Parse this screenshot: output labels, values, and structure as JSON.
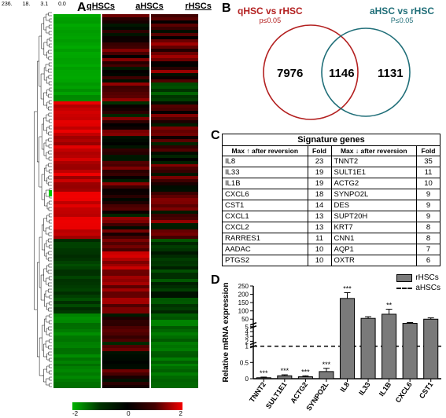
{
  "panel_labels": {
    "A": "A",
    "B": "B",
    "C": "C",
    "D": "D"
  },
  "heatmap": {
    "columns": [
      "qHSCs",
      "aHSCs",
      "rHSCs"
    ],
    "dendro_scale": [
      "236.",
      "18.",
      "3.1",
      "0.0"
    ],
    "legend_ticks": [
      "-2",
      "0",
      "2"
    ],
    "colors": {
      "low": "#00b400",
      "mid": "#000000",
      "high": "#f40000"
    },
    "n_rows": 120,
    "dendro_marker_color": "#00c800"
  },
  "venn": {
    "left": {
      "label": "qHSC vs rHSC",
      "sub": "p≤0.05",
      "color": "#b32020",
      "n": "7976"
    },
    "right": {
      "label": "aHSC vs rHSC",
      "sub": "P≤0.05",
      "color": "#1f6e78",
      "n": "1131"
    },
    "overlap": "1146"
  },
  "table": {
    "title": "Signature genes",
    "headers_up": "Max ↑ after reversion",
    "headers_down": "Max ↓ after reversion",
    "fold_label": "Fold",
    "up": [
      {
        "g": "IL8",
        "f": 23
      },
      {
        "g": "IL33",
        "f": 19
      },
      {
        "g": "IL1B",
        "f": 19
      },
      {
        "g": "CXCL6",
        "f": 18
      },
      {
        "g": "CST1",
        "f": 14
      },
      {
        "g": "CXCL1",
        "f": 13
      },
      {
        "g": "CXCL2",
        "f": 13
      },
      {
        "g": "RARRES1",
        "f": 11
      },
      {
        "g": "AADAC",
        "f": 10
      },
      {
        "g": "PTGS2",
        "f": 10
      }
    ],
    "down": [
      {
        "g": "TNNT2",
        "f": 35
      },
      {
        "g": "SULT1E1",
        "f": 11
      },
      {
        "g": "ACTG2",
        "f": 10
      },
      {
        "g": "SYNPO2L",
        "f": 9
      },
      {
        "g": "DES",
        "f": 9
      },
      {
        "g": "SUPT20H",
        "f": 9
      },
      {
        "g": "KRT7",
        "f": 8
      },
      {
        "g": "CNN1",
        "f": 8
      },
      {
        "g": "AQP1",
        "f": 7
      },
      {
        "g": "OXTR",
        "f": 6
      }
    ]
  },
  "bars": {
    "ylabel": "Relative mRNA expression",
    "legend": {
      "rHSCs": "rHSCs",
      "aHSCs": "aHSCs"
    },
    "bar_color": "#7a7a7a",
    "baseline_style": "dashed",
    "axis_breaks": [
      {
        "range": [
          0,
          1
        ],
        "ticks": [
          0,
          0.5,
          1
        ],
        "px": 40
      },
      {
        "range": [
          1,
          5
        ],
        "ticks": [
          2,
          3,
          4,
          5
        ],
        "px": 24
      },
      {
        "range": [
          5,
          250
        ],
        "ticks": [
          50,
          100,
          150,
          200,
          250
        ],
        "px": 50
      }
    ],
    "genes": [
      {
        "name": "TNNT2",
        "val": 0.03,
        "err": 0.02,
        "sig": "***"
      },
      {
        "name": "SULT1E1",
        "val": 0.09,
        "err": 0.03,
        "sig": "***"
      },
      {
        "name": "ACTG2",
        "val": 0.06,
        "err": 0.03,
        "sig": "***"
      },
      {
        "name": "SYNPO2L",
        "val": 0.22,
        "err": 0.1,
        "sig": "***"
      },
      {
        "name": "IL8",
        "val": 175,
        "err": 35,
        "sig": "***"
      },
      {
        "name": "IL33",
        "val": 55,
        "err": 10,
        "sig": ""
      },
      {
        "name": "IL1B",
        "val": 80,
        "err": 30,
        "sig": "**"
      },
      {
        "name": "CXCL6",
        "val": 25,
        "err": 5,
        "sig": ""
      },
      {
        "name": "CST1",
        "val": 50,
        "err": 8,
        "sig": ""
      }
    ]
  }
}
